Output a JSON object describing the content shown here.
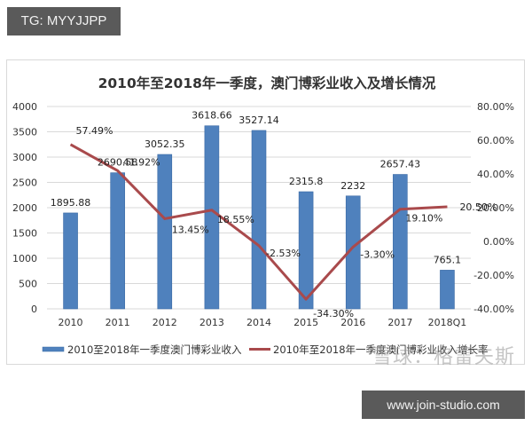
{
  "overlay": {
    "top_tag": "TG: MYYJJPP",
    "bottom_tag": "www.join-studio.com",
    "watermark": "雪球：格雷夫斯"
  },
  "colors": {
    "bar": "#4f81bd",
    "bar_edge": "#3a6aa5",
    "line": "#a94a4c",
    "grid": "#d9d9d9",
    "tag_bg": "#5a5a5a"
  },
  "chart_data": {
    "type": "bar",
    "title": "2010年至2018年一季度，澳门博彩业收入及增长情况",
    "categories": [
      "2010",
      "2011",
      "2012",
      "2013",
      "2014",
      "2015",
      "2016",
      "2017",
      "2018Q1"
    ],
    "series": [
      {
        "name": "2010至2018年一季度澳门博彩业收入",
        "type": "bar",
        "axis": "left",
        "values": [
          1895.88,
          2690.58,
          3052.35,
          3618.66,
          3527.14,
          2315.8,
          2232,
          2657.43,
          765.1
        ],
        "labels": [
          "1895.88",
          "2690.58",
          "3052.35",
          "3618.66",
          "3527.14",
          "2315.8",
          "2232",
          "2657.43",
          "765.1"
        ]
      },
      {
        "name": "2010年至2018年一季度澳门博彩业收入增长率",
        "type": "line",
        "axis": "right",
        "values": [
          57.49,
          41.92,
          13.45,
          18.55,
          -2.53,
          -34.3,
          -3.3,
          19.1,
          20.5
        ],
        "labels": [
          "57.49%",
          "41.92%",
          "13.45%",
          "18.55%",
          "-2.53%",
          "-34.30%",
          "-3.30%",
          "19.10%",
          "20.50%"
        ]
      }
    ],
    "xlabel": "",
    "ylabel": "",
    "ylim": [
      0,
      4000
    ],
    "y_ticks": [
      "0",
      "500",
      "1000",
      "1500",
      "2000",
      "2500",
      "3000",
      "3500",
      "4000"
    ],
    "y2lim": [
      -40,
      80
    ],
    "y2_ticks": [
      "-40.00%",
      "-20.00%",
      "0.00%",
      "20.00%",
      "40.00%",
      "60.00%",
      "80.00%"
    ],
    "grid": true,
    "legend_position": "bottom",
    "legend": [
      "2010至2018年一季度澳门博彩业收入",
      "2010年至2018年一季度澳门博彩业收入增长率"
    ]
  }
}
